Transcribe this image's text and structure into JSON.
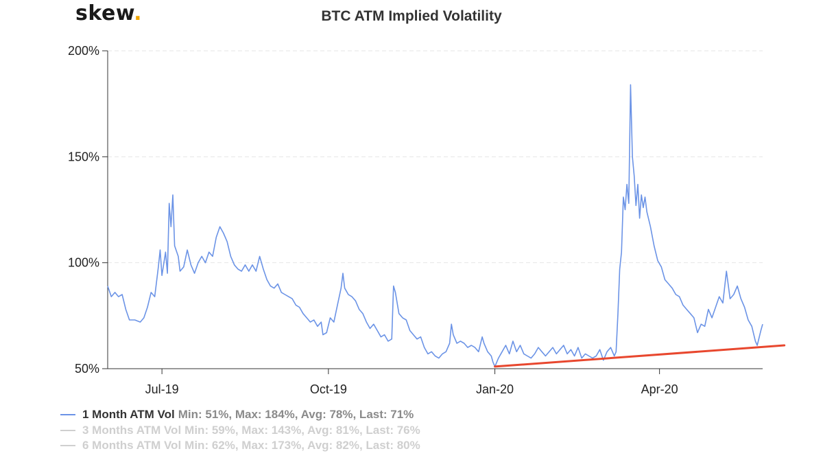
{
  "brand": {
    "name": "skew",
    "dot": "."
  },
  "chart_data": {
    "type": "line",
    "title": "BTC ATM Implied Volatility",
    "xlabel": "",
    "ylabel": "",
    "ylim": [
      50,
      200
    ],
    "yticks": [
      "50%",
      "100%",
      "150%",
      "200%"
    ],
    "yticks_values": [
      50,
      100,
      150,
      200
    ],
    "xlim": [
      "2019-06-01",
      "2020-05-28"
    ],
    "xticks": [
      {
        "label": "Jul-19",
        "date": "2019-07-01"
      },
      {
        "label": "Oct-19",
        "date": "2019-10-01"
      },
      {
        "label": "Jan-20",
        "date": "2020-01-01"
      },
      {
        "label": "Apr-20",
        "date": "2020-04-01"
      }
    ],
    "grid": "horizontal dashed",
    "legend_position": "bottom-left",
    "series": [
      {
        "name": "1 Month ATM Vol",
        "color": "#6b93e6",
        "visible": true,
        "stats": "Min: 51%, Max: 184%, Avg: 78%, Last: 71%",
        "points": [
          [
            "2019-06-01",
            89
          ],
          [
            "2019-06-03",
            84
          ],
          [
            "2019-06-05",
            86
          ],
          [
            "2019-06-07",
            84
          ],
          [
            "2019-06-09",
            85
          ],
          [
            "2019-06-11",
            78
          ],
          [
            "2019-06-13",
            73
          ],
          [
            "2019-06-16",
            73
          ],
          [
            "2019-06-19",
            72
          ],
          [
            "2019-06-21",
            74
          ],
          [
            "2019-06-23",
            79
          ],
          [
            "2019-06-25",
            86
          ],
          [
            "2019-06-27",
            84
          ],
          [
            "2019-06-29",
            98
          ],
          [
            "2019-06-30",
            106
          ],
          [
            "2019-07-01",
            94
          ],
          [
            "2019-07-03",
            105
          ],
          [
            "2019-07-04",
            95
          ],
          [
            "2019-07-05",
            128
          ],
          [
            "2019-07-06",
            117
          ],
          [
            "2019-07-07",
            132
          ],
          [
            "2019-07-08",
            108
          ],
          [
            "2019-07-10",
            103
          ],
          [
            "2019-07-11",
            96
          ],
          [
            "2019-07-13",
            98
          ],
          [
            "2019-07-15",
            106
          ],
          [
            "2019-07-17",
            99
          ],
          [
            "2019-07-19",
            95
          ],
          [
            "2019-07-21",
            100
          ],
          [
            "2019-07-23",
            103
          ],
          [
            "2019-07-25",
            100
          ],
          [
            "2019-07-27",
            105
          ],
          [
            "2019-07-29",
            103
          ],
          [
            "2019-07-31",
            112
          ],
          [
            "2019-08-02",
            117
          ],
          [
            "2019-08-04",
            114
          ],
          [
            "2019-08-06",
            110
          ],
          [
            "2019-08-08",
            103
          ],
          [
            "2019-08-10",
            99
          ],
          [
            "2019-08-12",
            97
          ],
          [
            "2019-08-14",
            96
          ],
          [
            "2019-08-16",
            99
          ],
          [
            "2019-08-18",
            96
          ],
          [
            "2019-08-20",
            99
          ],
          [
            "2019-08-22",
            96
          ],
          [
            "2019-08-24",
            103
          ],
          [
            "2019-08-26",
            97
          ],
          [
            "2019-08-28",
            92
          ],
          [
            "2019-08-30",
            89
          ],
          [
            "2019-09-01",
            88
          ],
          [
            "2019-09-03",
            90
          ],
          [
            "2019-09-05",
            86
          ],
          [
            "2019-09-07",
            85
          ],
          [
            "2019-09-09",
            84
          ],
          [
            "2019-09-11",
            83
          ],
          [
            "2019-09-13",
            80
          ],
          [
            "2019-09-15",
            79
          ],
          [
            "2019-09-17",
            76
          ],
          [
            "2019-09-19",
            74
          ],
          [
            "2019-09-21",
            72
          ],
          [
            "2019-09-23",
            73
          ],
          [
            "2019-09-25",
            70
          ],
          [
            "2019-09-27",
            72
          ],
          [
            "2019-09-28",
            66
          ],
          [
            "2019-09-30",
            67
          ],
          [
            "2019-10-02",
            74
          ],
          [
            "2019-10-04",
            72
          ],
          [
            "2019-10-06",
            80
          ],
          [
            "2019-10-08",
            88
          ],
          [
            "2019-10-09",
            95
          ],
          [
            "2019-10-10",
            88
          ],
          [
            "2019-10-12",
            85
          ],
          [
            "2019-10-14",
            84
          ],
          [
            "2019-10-16",
            82
          ],
          [
            "2019-10-18",
            78
          ],
          [
            "2019-10-20",
            76
          ],
          [
            "2019-10-22",
            72
          ],
          [
            "2019-10-24",
            69
          ],
          [
            "2019-10-26",
            71
          ],
          [
            "2019-10-28",
            68
          ],
          [
            "2019-10-30",
            65
          ],
          [
            "2019-11-01",
            66
          ],
          [
            "2019-11-03",
            63
          ],
          [
            "2019-11-05",
            64
          ],
          [
            "2019-11-06",
            89
          ],
          [
            "2019-11-07",
            86
          ],
          [
            "2019-11-09",
            76
          ],
          [
            "2019-11-11",
            74
          ],
          [
            "2019-11-13",
            73
          ],
          [
            "2019-11-15",
            68
          ],
          [
            "2019-11-17",
            66
          ],
          [
            "2019-11-19",
            64
          ],
          [
            "2019-11-21",
            65
          ],
          [
            "2019-11-23",
            60
          ],
          [
            "2019-11-25",
            57
          ],
          [
            "2019-11-27",
            58
          ],
          [
            "2019-11-29",
            56
          ],
          [
            "2019-12-01",
            55
          ],
          [
            "2019-12-03",
            57
          ],
          [
            "2019-12-05",
            58
          ],
          [
            "2019-12-07",
            62
          ],
          [
            "2019-12-08",
            71
          ],
          [
            "2019-12-09",
            66
          ],
          [
            "2019-12-11",
            62
          ],
          [
            "2019-12-13",
            63
          ],
          [
            "2019-12-15",
            62
          ],
          [
            "2019-12-17",
            60
          ],
          [
            "2019-12-19",
            61
          ],
          [
            "2019-12-21",
            60
          ],
          [
            "2019-12-23",
            58
          ],
          [
            "2019-12-25",
            65
          ],
          [
            "2019-12-26",
            62
          ],
          [
            "2019-12-28",
            58
          ],
          [
            "2019-12-30",
            56
          ],
          [
            "2019-12-31",
            53
          ],
          [
            "2020-01-01",
            51
          ],
          [
            "2020-01-03",
            55
          ],
          [
            "2020-01-05",
            58
          ],
          [
            "2020-01-07",
            61
          ],
          [
            "2020-01-09",
            57
          ],
          [
            "2020-01-11",
            63
          ],
          [
            "2020-01-13",
            58
          ],
          [
            "2020-01-15",
            61
          ],
          [
            "2020-01-17",
            57
          ],
          [
            "2020-01-19",
            56
          ],
          [
            "2020-01-21",
            55
          ],
          [
            "2020-01-23",
            57
          ],
          [
            "2020-01-25",
            60
          ],
          [
            "2020-01-27",
            58
          ],
          [
            "2020-01-29",
            56
          ],
          [
            "2020-01-31",
            58
          ],
          [
            "2020-02-02",
            60
          ],
          [
            "2020-02-04",
            57
          ],
          [
            "2020-02-06",
            59
          ],
          [
            "2020-02-08",
            61
          ],
          [
            "2020-02-10",
            57
          ],
          [
            "2020-02-12",
            59
          ],
          [
            "2020-02-14",
            56
          ],
          [
            "2020-02-16",
            60
          ],
          [
            "2020-02-18",
            55
          ],
          [
            "2020-02-20",
            57
          ],
          [
            "2020-02-22",
            56
          ],
          [
            "2020-02-24",
            55
          ],
          [
            "2020-02-26",
            56
          ],
          [
            "2020-02-28",
            59
          ],
          [
            "2020-03-01",
            54
          ],
          [
            "2020-03-03",
            58
          ],
          [
            "2020-03-05",
            60
          ],
          [
            "2020-03-07",
            56
          ],
          [
            "2020-03-08",
            58
          ],
          [
            "2020-03-09",
            76
          ],
          [
            "2020-03-10",
            97
          ],
          [
            "2020-03-11",
            105
          ],
          [
            "2020-03-12",
            131
          ],
          [
            "2020-03-13",
            125
          ],
          [
            "2020-03-14",
            137
          ],
          [
            "2020-03-15",
            128
          ],
          [
            "2020-03-16",
            184
          ],
          [
            "2020-03-17",
            150
          ],
          [
            "2020-03-18",
            141
          ],
          [
            "2020-03-19",
            127
          ],
          [
            "2020-03-20",
            137
          ],
          [
            "2020-03-21",
            121
          ],
          [
            "2020-03-22",
            132
          ],
          [
            "2020-03-23",
            126
          ],
          [
            "2020-03-24",
            131
          ],
          [
            "2020-03-25",
            124
          ],
          [
            "2020-03-27",
            117
          ],
          [
            "2020-03-29",
            108
          ],
          [
            "2020-03-31",
            101
          ],
          [
            "2020-04-02",
            98
          ],
          [
            "2020-04-04",
            92
          ],
          [
            "2020-04-06",
            90
          ],
          [
            "2020-04-08",
            88
          ],
          [
            "2020-04-10",
            85
          ],
          [
            "2020-04-12",
            84
          ],
          [
            "2020-04-14",
            80
          ],
          [
            "2020-04-16",
            78
          ],
          [
            "2020-04-18",
            76
          ],
          [
            "2020-04-20",
            74
          ],
          [
            "2020-04-22",
            67
          ],
          [
            "2020-04-24",
            71
          ],
          [
            "2020-04-26",
            70
          ],
          [
            "2020-04-28",
            78
          ],
          [
            "2020-04-30",
            74
          ],
          [
            "2020-05-02",
            79
          ],
          [
            "2020-05-04",
            84
          ],
          [
            "2020-05-06",
            81
          ],
          [
            "2020-05-08",
            96
          ],
          [
            "2020-05-10",
            83
          ],
          [
            "2020-05-12",
            85
          ],
          [
            "2020-05-14",
            89
          ],
          [
            "2020-05-16",
            83
          ],
          [
            "2020-05-18",
            79
          ],
          [
            "2020-05-20",
            73
          ],
          [
            "2020-05-22",
            70
          ],
          [
            "2020-05-24",
            63
          ],
          [
            "2020-05-25",
            61
          ],
          [
            "2020-05-27",
            68
          ],
          [
            "2020-05-28",
            71
          ]
        ]
      },
      {
        "name": "3 Months ATM Vol",
        "color": "#cfcfcf",
        "visible": false,
        "stats": "Min: 59%, Max: 143%, Avg: 81%, Last: 76%"
      },
      {
        "name": "6 Months ATM Vol",
        "color": "#cfcfcf",
        "visible": false,
        "stats": "Min: 62%, Max: 173%, Avg: 82%, Last: 80%"
      }
    ],
    "annotations": [
      {
        "type": "trendline",
        "color": "#e8472e",
        "from": [
          "2020-01-01",
          51
        ],
        "to": [
          "2020-06-09",
          61
        ]
      }
    ]
  }
}
